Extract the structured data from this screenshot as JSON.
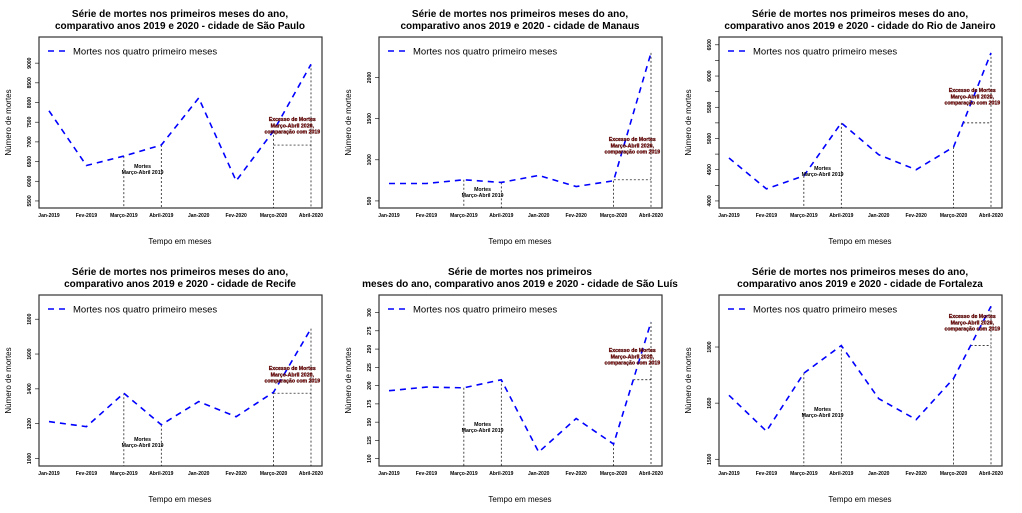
{
  "colors": {
    "series": "#0000ff",
    "excess_text": "#8b0000",
    "axis": "#333333"
  },
  "chart_data": [
    {
      "type": "line",
      "title": [
        "Série de mortes nos primeiros meses do ano,",
        "comparativo anos 2019 e 2020 - cidade de São Paulo"
      ],
      "xlabel": "Tempo em meses",
      "ylabel": "Número de mortes",
      "categories": [
        "Jan-2019",
        "Fev-2019",
        "Março-2019",
        "Abril-2019",
        "Jan-2020",
        "Fev-2020",
        "Março-2020",
        "Abril-2020"
      ],
      "series": [
        {
          "name": "Mortes nos quatro primeiro meses",
          "values": [
            7790,
            6400,
            6640,
            6920,
            8115,
            6010,
            7280,
            8970
          ]
        }
      ],
      "ylim": [
        5321,
        9664
      ],
      "yticks": [
        5500,
        6000,
        6500,
        7000,
        7500,
        8000,
        8500,
        9000
      ],
      "yticklabels": [
        "5500",
        "6000",
        "6500",
        "7000",
        "7500",
        "8000",
        "8500",
        "9000"
      ],
      "excess_baseline": 6920,
      "legend": "top-left",
      "annotations": {
        "mortes_2019": [
          "Mortes",
          "Março-Abril 2019"
        ],
        "excesso_2020": [
          "Excesso de Mortes",
          "Março-Abril 2020,",
          "comparação com 2019"
        ]
      }
    },
    {
      "type": "line",
      "title": [
        "Série de mortes nos primeiros meses do ano,",
        "comparativo anos 2019 e 2020 - cidade de Manaus"
      ],
      "xlabel": "Tempo em meses",
      "ylabel": "Número de mortes",
      "categories": [
        "Jan-2019",
        "Fev-2019",
        "Março-2019",
        "Abril-2019",
        "Jan-2020",
        "Fev-2020",
        "Março-2020",
        "Abril-2020"
      ],
      "series": [
        {
          "name": "Mortes nos quatro primeiro meses",
          "values": [
            712,
            712,
            757,
            725,
            810,
            675,
            745,
            2300
          ]
        }
      ],
      "ylim": [
        414,
        2493
      ],
      "yticks": [
        500,
        1000,
        1500,
        2000
      ],
      "yticklabels": [
        "500",
        "1000",
        "1500",
        "2000"
      ],
      "excess_baseline": 757,
      "legend": "top-left",
      "annotations": {
        "mortes_2019": [
          "Mortes",
          "Março-Abril 2019"
        ],
        "excesso_2020": [
          "Excesso de Mortes",
          "Março-Abril 2020,",
          "comparação com 2019"
        ]
      }
    },
    {
      "type": "line",
      "title": [
        "Série de mortes nos primeiros meses do ano,",
        "comparativo anos 2019 e 2020 - cidade do Rio de Janeiro"
      ],
      "xlabel": "Tempo em meses",
      "ylabel": "Número de mortes",
      "categories": [
        "Jan-2019",
        "Fev-2019",
        "Março-2019",
        "Abril-2019",
        "Jan-2020",
        "Fev-2020",
        "Março-2020",
        "Abril-2020"
      ],
      "series": [
        {
          "name": "Mortes nos quatro primeiro meses",
          "values": [
            4687,
            4193,
            4402,
            5250,
            4740,
            4500,
            4865,
            6370
          ]
        }
      ],
      "ylim": [
        3887,
        6625
      ],
      "yticks": [
        4000,
        4250,
        4500,
        4750,
        5000,
        5250,
        5500,
        5750,
        6000,
        6250,
        6500
      ],
      "yticklabels": [
        "4000",
        "",
        "4500",
        "",
        "5000",
        "",
        "5500",
        "",
        "6000",
        "",
        "6500"
      ],
      "excess_baseline": 5250,
      "legend": "top-left",
      "annotations": {
        "mortes_2019": [
          "Mortes",
          "Março-Abril 2019"
        ],
        "excesso_2020": [
          "Excesso de Mortes",
          "Março-Abril 2020,",
          "comparação com 2019"
        ]
      }
    },
    {
      "type": "line",
      "title": [
        "Série de mortes nos primeiros meses do ano,",
        "comparativo anos 2019 e 2020 - cidade de Recife"
      ],
      "xlabel": "Tempo em meses",
      "ylabel": "Número de mortes",
      "categories": [
        "Jan-2019",
        "Fev-2019",
        "Março-2019",
        "Abril-2019",
        "Jan-2020",
        "Fev-2020",
        "Março-2020",
        "Abril-2020"
      ],
      "series": [
        {
          "name": "Mortes nos quatro primeiro meses",
          "values": [
            1212,
            1183,
            1375,
            1194,
            1327,
            1240,
            1381,
            1746
          ]
        }
      ],
      "ylim": [
        957,
        1939
      ],
      "yticks": [
        1000,
        1200,
        1400,
        1600,
        1800
      ],
      "yticklabels": [
        "1000",
        "1200",
        "1400",
        "1600",
        "1800"
      ],
      "excess_baseline": 1375,
      "legend": "top-left",
      "annotations": {
        "mortes_2019": [
          "Mortes",
          "Março-Abril 2019"
        ],
        "excesso_2020": [
          "Excesso de Mortes",
          "Março-Abril 2020,",
          "comparação com 2019"
        ]
      }
    },
    {
      "type": "line",
      "title": [
        "Série de mortes nos primeiros",
        "meses do ano, comparativo anos 2019 e 2020 - cidade de São Luís"
      ],
      "xlabel": "Tempo em meses",
      "ylabel": "Número de mortes",
      "categories": [
        "Jan-2019",
        "Fev-2019",
        "Março-2019",
        "Abril-2019",
        "Jan-2020",
        "Fev-2020",
        "Março-2020",
        "Abril-2020"
      ],
      "series": [
        {
          "name": "Mortes nos quatro primeiro meses",
          "values": [
            193,
            198,
            197,
            208,
            109,
            155,
            120,
            287
          ]
        }
      ],
      "ylim": [
        90,
        324
      ],
      "yticks": [
        100,
        125,
        150,
        175,
        200,
        225,
        250,
        275,
        300
      ],
      "yticklabels": [
        "100",
        "125",
        "150",
        "175",
        "200",
        "225",
        "250",
        "275",
        "300"
      ],
      "excess_baseline": 208,
      "legend": "top-left",
      "annotations": {
        "mortes_2019": [
          "Mortes",
          "Março-Abril 2019"
        ],
        "excesso_2020": [
          "Excesso de Mortes",
          "Março-Abril 2020,",
          "comparação com 2019"
        ]
      }
    },
    {
      "type": "line",
      "title": [
        "Série de mortes nos primeiros meses do ano,",
        "comparativo anos 2019 e 2020 - cidade de Fortaleza"
      ],
      "xlabel": "Tempo em meses",
      "ylabel": "Número de mortes",
      "categories": [
        "Jan-2019",
        "Fev-2019",
        "Março-2019",
        "Abril-2019",
        "Jan-2020",
        "Fev-2020",
        "Março-2020",
        "Abril-2020"
      ],
      "series": [
        {
          "name": "Mortes nos quatro primeiro meses",
          "values": [
            1671,
            1575,
            1730,
            1804,
            1662,
            1606,
            1716,
            1909
          ]
        }
      ],
      "ylim": [
        1482,
        1939
      ],
      "yticks": [
        1500,
        1650,
        1800
      ],
      "yticklabels": [
        "1500",
        "1650",
        "1800"
      ],
      "excess_baseline": 1804,
      "legend": "top-left",
      "annotations": {
        "mortes_2019": [
          "Mortes",
          "Março-Abril 2019"
        ],
        "excesso_2020": [
          "Excesso de Mortes",
          "Março-Abril 2020,",
          "comparação com 2019"
        ]
      }
    }
  ]
}
